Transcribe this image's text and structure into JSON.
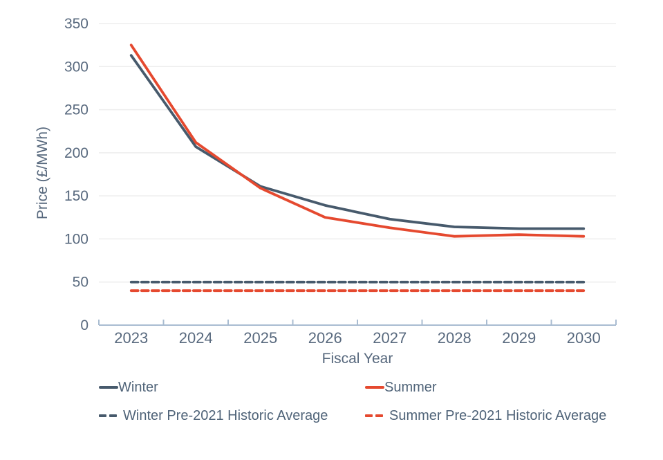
{
  "chart_data": {
    "type": "line",
    "title": "",
    "xlabel": "Fiscal Year",
    "ylabel": "Price (£/MWh)",
    "x_categories": [
      "2023",
      "2024",
      "2025",
      "2026",
      "2027",
      "2028",
      "2029",
      "2030"
    ],
    "y_ticks": [
      0,
      50,
      100,
      150,
      200,
      250,
      300,
      350
    ],
    "ylim": [
      0,
      350
    ],
    "grid": "horizontal",
    "legend_position": "bottom",
    "series": [
      {
        "name": "Winter",
        "style": "solid",
        "color": "#475a6c",
        "values": [
          313,
          207,
          161,
          139,
          123,
          114,
          112,
          112
        ]
      },
      {
        "name": "Summer",
        "style": "solid",
        "color": "#e5492f",
        "values": [
          325,
          212,
          159,
          125,
          113,
          103,
          105,
          103
        ]
      },
      {
        "name": "Winter Pre-2021 Historic Average",
        "style": "dashed",
        "color": "#475a6c",
        "values": [
          50,
          50,
          50,
          50,
          50,
          50,
          50,
          50
        ]
      },
      {
        "name": "Summer Pre-2021 Historic Average",
        "style": "dashed",
        "color": "#e5492f",
        "values": [
          40,
          40,
          40,
          40,
          40,
          40,
          40,
          40
        ]
      }
    ],
    "colors": {
      "grid": "#ededed",
      "axis": "#a9bcd1",
      "tick_text": "#58697e",
      "legend_text": "#4f6378",
      "background": "#ffffff"
    }
  }
}
